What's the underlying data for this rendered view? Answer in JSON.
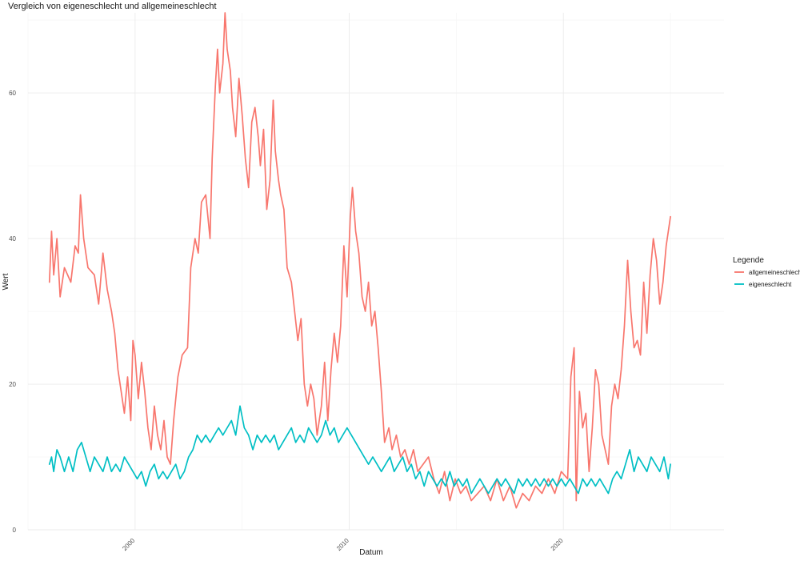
{
  "chart_data": {
    "type": "line",
    "title": "Vergleich von eigeneschlecht und allgemeineschlecht",
    "xlabel": "Datum",
    "ylabel": "Wert",
    "x_ticks": [
      "2000",
      "2010",
      "2020"
    ],
    "y_ticks": [
      0,
      20,
      40,
      60
    ],
    "xlim": [
      1995.0,
      2027.5
    ],
    "ylim": [
      0,
      71
    ],
    "grid": true,
    "legend": {
      "title": "Legende",
      "position": "right"
    },
    "colors": {
      "allgemeineschlecht": "#F8766D",
      "eigeneschlecht": "#00BFC4"
    },
    "series": [
      {
        "name": "allgemeineschlecht",
        "points": [
          [
            1996.0,
            34
          ],
          [
            1996.1,
            41
          ],
          [
            1996.2,
            35
          ],
          [
            1996.35,
            40
          ],
          [
            1996.5,
            32
          ],
          [
            1996.7,
            36
          ],
          [
            1997.0,
            34
          ],
          [
            1997.2,
            39
          ],
          [
            1997.35,
            38
          ],
          [
            1997.45,
            46
          ],
          [
            1997.6,
            40
          ],
          [
            1997.8,
            36
          ],
          [
            1998.1,
            35
          ],
          [
            1998.3,
            31
          ],
          [
            1998.5,
            38
          ],
          [
            1998.7,
            33
          ],
          [
            1998.9,
            30
          ],
          [
            1999.05,
            27
          ],
          [
            1999.2,
            22
          ],
          [
            1999.35,
            19
          ],
          [
            1999.5,
            16
          ],
          [
            1999.65,
            21
          ],
          [
            1999.8,
            15
          ],
          [
            1999.9,
            26
          ],
          [
            2000.0,
            24
          ],
          [
            2000.15,
            18
          ],
          [
            2000.3,
            23
          ],
          [
            2000.45,
            19
          ],
          [
            2000.6,
            14
          ],
          [
            2000.75,
            11
          ],
          [
            2000.9,
            17
          ],
          [
            2001.05,
            13
          ],
          [
            2001.2,
            11
          ],
          [
            2001.35,
            15
          ],
          [
            2001.5,
            10
          ],
          [
            2001.65,
            9
          ],
          [
            2001.8,
            15
          ],
          [
            2002.0,
            21
          ],
          [
            2002.2,
            24
          ],
          [
            2002.45,
            25
          ],
          [
            2002.6,
            36
          ],
          [
            2002.8,
            40
          ],
          [
            2002.95,
            38
          ],
          [
            2003.1,
            45
          ],
          [
            2003.3,
            46
          ],
          [
            2003.5,
            40
          ],
          [
            2003.6,
            51
          ],
          [
            2003.75,
            61
          ],
          [
            2003.85,
            66
          ],
          [
            2003.95,
            60
          ],
          [
            2004.1,
            64
          ],
          [
            2004.2,
            71
          ],
          [
            2004.3,
            66
          ],
          [
            2004.45,
            63
          ],
          [
            2004.55,
            58
          ],
          [
            2004.7,
            54
          ],
          [
            2004.85,
            62
          ],
          [
            2005.0,
            57
          ],
          [
            2005.15,
            51
          ],
          [
            2005.3,
            47
          ],
          [
            2005.45,
            56
          ],
          [
            2005.6,
            58
          ],
          [
            2005.75,
            54
          ],
          [
            2005.85,
            50
          ],
          [
            2006.0,
            55
          ],
          [
            2006.15,
            44
          ],
          [
            2006.3,
            48
          ],
          [
            2006.45,
            59
          ],
          [
            2006.55,
            52
          ],
          [
            2006.7,
            48
          ],
          [
            2006.8,
            46
          ],
          [
            2006.95,
            44
          ],
          [
            2007.1,
            36
          ],
          [
            2007.3,
            34
          ],
          [
            2007.45,
            30
          ],
          [
            2007.6,
            26
          ],
          [
            2007.75,
            29
          ],
          [
            2007.9,
            20
          ],
          [
            2008.05,
            17
          ],
          [
            2008.2,
            20
          ],
          [
            2008.35,
            18
          ],
          [
            2008.5,
            13
          ],
          [
            2008.7,
            17
          ],
          [
            2008.85,
            23
          ],
          [
            2009.0,
            15
          ],
          [
            2009.15,
            22
          ],
          [
            2009.3,
            27
          ],
          [
            2009.45,
            23
          ],
          [
            2009.6,
            28
          ],
          [
            2009.75,
            39
          ],
          [
            2009.9,
            32
          ],
          [
            2010.05,
            43
          ],
          [
            2010.15,
            47
          ],
          [
            2010.3,
            41
          ],
          [
            2010.45,
            38
          ],
          [
            2010.6,
            32
          ],
          [
            2010.75,
            30
          ],
          [
            2010.9,
            34
          ],
          [
            2011.05,
            28
          ],
          [
            2011.2,
            30
          ],
          [
            2011.35,
            25
          ],
          [
            2011.5,
            19
          ],
          [
            2011.65,
            12
          ],
          [
            2011.85,
            14
          ],
          [
            2012.0,
            11
          ],
          [
            2012.2,
            13
          ],
          [
            2012.4,
            10
          ],
          [
            2012.6,
            11
          ],
          [
            2012.8,
            9
          ],
          [
            2013.0,
            11
          ],
          [
            2013.2,
            8
          ],
          [
            2013.45,
            9
          ],
          [
            2013.7,
            10
          ],
          [
            2013.95,
            7
          ],
          [
            2014.2,
            5
          ],
          [
            2014.45,
            8
          ],
          [
            2014.7,
            4
          ],
          [
            2014.95,
            7
          ],
          [
            2015.2,
            5
          ],
          [
            2015.45,
            6
          ],
          [
            2015.7,
            4
          ],
          [
            2016.0,
            5
          ],
          [
            2016.3,
            6
          ],
          [
            2016.6,
            4
          ],
          [
            2016.9,
            7
          ],
          [
            2017.2,
            4
          ],
          [
            2017.5,
            6
          ],
          [
            2017.8,
            3
          ],
          [
            2018.1,
            5
          ],
          [
            2018.4,
            4
          ],
          [
            2018.7,
            6
          ],
          [
            2019.0,
            5
          ],
          [
            2019.3,
            7
          ],
          [
            2019.6,
            5
          ],
          [
            2019.9,
            8
          ],
          [
            2020.2,
            7
          ],
          [
            2020.35,
            21
          ],
          [
            2020.5,
            25
          ],
          [
            2020.6,
            4
          ],
          [
            2020.75,
            19
          ],
          [
            2020.9,
            14
          ],
          [
            2021.05,
            16
          ],
          [
            2021.2,
            8
          ],
          [
            2021.35,
            14
          ],
          [
            2021.5,
            22
          ],
          [
            2021.65,
            20
          ],
          [
            2021.8,
            13
          ],
          [
            2021.95,
            11
          ],
          [
            2022.1,
            9
          ],
          [
            2022.25,
            17
          ],
          [
            2022.4,
            20
          ],
          [
            2022.55,
            18
          ],
          [
            2022.7,
            22
          ],
          [
            2022.85,
            28
          ],
          [
            2023.0,
            37
          ],
          [
            2023.15,
            30
          ],
          [
            2023.3,
            25
          ],
          [
            2023.45,
            26
          ],
          [
            2023.6,
            24
          ],
          [
            2023.75,
            34
          ],
          [
            2023.9,
            27
          ],
          [
            2024.05,
            35
          ],
          [
            2024.2,
            40
          ],
          [
            2024.35,
            37
          ],
          [
            2024.5,
            31
          ],
          [
            2024.65,
            34
          ],
          [
            2024.8,
            39
          ],
          [
            2025.0,
            43
          ]
        ]
      },
      {
        "name": "eigeneschlecht",
        "points": [
          [
            1996.0,
            9
          ],
          [
            1996.1,
            10
          ],
          [
            1996.2,
            8
          ],
          [
            1996.35,
            11
          ],
          [
            1996.5,
            10
          ],
          [
            1996.7,
            8
          ],
          [
            1996.9,
            10
          ],
          [
            1997.1,
            8
          ],
          [
            1997.3,
            11
          ],
          [
            1997.5,
            12
          ],
          [
            1997.7,
            10
          ],
          [
            1997.9,
            8
          ],
          [
            1998.1,
            10
          ],
          [
            1998.3,
            9
          ],
          [
            1998.5,
            8
          ],
          [
            1998.7,
            10
          ],
          [
            1998.9,
            8
          ],
          [
            1999.1,
            9
          ],
          [
            1999.3,
            8
          ],
          [
            1999.5,
            10
          ],
          [
            1999.7,
            9
          ],
          [
            1999.9,
            8
          ],
          [
            2000.1,
            7
          ],
          [
            2000.3,
            8
          ],
          [
            2000.5,
            6
          ],
          [
            2000.7,
            8
          ],
          [
            2000.9,
            9
          ],
          [
            2001.1,
            7
          ],
          [
            2001.3,
            8
          ],
          [
            2001.5,
            7
          ],
          [
            2001.7,
            8
          ],
          [
            2001.9,
            9
          ],
          [
            2002.1,
            7
          ],
          [
            2002.3,
            8
          ],
          [
            2002.5,
            10
          ],
          [
            2002.7,
            11
          ],
          [
            2002.9,
            13
          ],
          [
            2003.1,
            12
          ],
          [
            2003.3,
            13
          ],
          [
            2003.5,
            12
          ],
          [
            2003.7,
            13
          ],
          [
            2003.9,
            14
          ],
          [
            2004.1,
            13
          ],
          [
            2004.3,
            14
          ],
          [
            2004.5,
            15
          ],
          [
            2004.7,
            13
          ],
          [
            2004.9,
            17
          ],
          [
            2005.1,
            14
          ],
          [
            2005.3,
            13
          ],
          [
            2005.5,
            11
          ],
          [
            2005.7,
            13
          ],
          [
            2005.9,
            12
          ],
          [
            2006.1,
            13
          ],
          [
            2006.3,
            12
          ],
          [
            2006.5,
            13
          ],
          [
            2006.7,
            11
          ],
          [
            2006.9,
            12
          ],
          [
            2007.1,
            13
          ],
          [
            2007.3,
            14
          ],
          [
            2007.5,
            12
          ],
          [
            2007.7,
            13
          ],
          [
            2007.9,
            12
          ],
          [
            2008.1,
            14
          ],
          [
            2008.3,
            13
          ],
          [
            2008.5,
            12
          ],
          [
            2008.7,
            13
          ],
          [
            2008.9,
            15
          ],
          [
            2009.1,
            13
          ],
          [
            2009.3,
            14
          ],
          [
            2009.5,
            12
          ],
          [
            2009.7,
            13
          ],
          [
            2009.9,
            14
          ],
          [
            2010.1,
            13
          ],
          [
            2010.3,
            12
          ],
          [
            2010.5,
            11
          ],
          [
            2010.7,
            10
          ],
          [
            2010.9,
            9
          ],
          [
            2011.1,
            10
          ],
          [
            2011.3,
            9
          ],
          [
            2011.5,
            8
          ],
          [
            2011.7,
            9
          ],
          [
            2011.9,
            10
          ],
          [
            2012.1,
            8
          ],
          [
            2012.3,
            9
          ],
          [
            2012.5,
            10
          ],
          [
            2012.7,
            8
          ],
          [
            2012.9,
            9
          ],
          [
            2013.1,
            7
          ],
          [
            2013.3,
            8
          ],
          [
            2013.5,
            6
          ],
          [
            2013.7,
            8
          ],
          [
            2013.9,
            7
          ],
          [
            2014.1,
            6
          ],
          [
            2014.3,
            7
          ],
          [
            2014.5,
            6
          ],
          [
            2014.7,
            8
          ],
          [
            2014.9,
            6
          ],
          [
            2015.1,
            7
          ],
          [
            2015.3,
            6
          ],
          [
            2015.5,
            7
          ],
          [
            2015.7,
            5
          ],
          [
            2015.9,
            6
          ],
          [
            2016.1,
            7
          ],
          [
            2016.3,
            6
          ],
          [
            2016.5,
            5
          ],
          [
            2016.7,
            6
          ],
          [
            2016.9,
            7
          ],
          [
            2017.1,
            6
          ],
          [
            2017.3,
            7
          ],
          [
            2017.5,
            6
          ],
          [
            2017.7,
            5
          ],
          [
            2017.9,
            7
          ],
          [
            2018.1,
            6
          ],
          [
            2018.3,
            7
          ],
          [
            2018.5,
            6
          ],
          [
            2018.7,
            7
          ],
          [
            2018.9,
            6
          ],
          [
            2019.1,
            7
          ],
          [
            2019.3,
            6
          ],
          [
            2019.5,
            7
          ],
          [
            2019.7,
            6
          ],
          [
            2019.9,
            7
          ],
          [
            2020.1,
            6
          ],
          [
            2020.3,
            7
          ],
          [
            2020.5,
            6
          ],
          [
            2020.7,
            5
          ],
          [
            2020.9,
            7
          ],
          [
            2021.1,
            6
          ],
          [
            2021.3,
            7
          ],
          [
            2021.5,
            6
          ],
          [
            2021.7,
            7
          ],
          [
            2021.9,
            6
          ],
          [
            2022.1,
            5
          ],
          [
            2022.3,
            7
          ],
          [
            2022.5,
            8
          ],
          [
            2022.7,
            7
          ],
          [
            2022.9,
            9
          ],
          [
            2023.1,
            11
          ],
          [
            2023.3,
            8
          ],
          [
            2023.5,
            10
          ],
          [
            2023.7,
            9
          ],
          [
            2023.9,
            8
          ],
          [
            2024.1,
            10
          ],
          [
            2024.3,
            9
          ],
          [
            2024.5,
            8
          ],
          [
            2024.7,
            10
          ],
          [
            2024.9,
            7
          ],
          [
            2025.0,
            9
          ]
        ]
      }
    ]
  }
}
